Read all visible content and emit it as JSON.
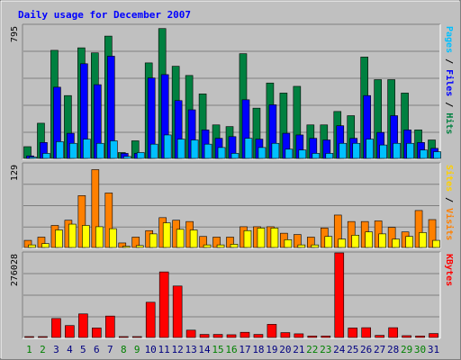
{
  "chart_data": {
    "type": "bar",
    "title": "Daily usage for December 2007",
    "categories": [
      "1",
      "2",
      "3",
      "4",
      "5",
      "6",
      "7",
      "8",
      "9",
      "10",
      "11",
      "12",
      "13",
      "14",
      "15",
      "16",
      "17",
      "18",
      "19",
      "20",
      "21",
      "22",
      "23",
      "24",
      "25",
      "26",
      "27",
      "28",
      "29",
      "30",
      "31"
    ],
    "weekend_categories": [
      "1",
      "2",
      "8",
      "9",
      "15",
      "16",
      "22",
      "23",
      "29",
      "30"
    ],
    "panels": [
      {
        "id": "requests",
        "scale_label": "795",
        "ymax": 795,
        "right_label_parts": [
          "Pages",
          " / ",
          "Files",
          " / ",
          "Hits"
        ],
        "series": [
          {
            "name": "Hits",
            "color": "#008040",
            "values": [
              70,
              210,
              645,
              375,
              660,
              630,
              730,
              35,
              105,
              570,
              775,
              550,
              495,
              385,
              200,
              190,
              625,
              300,
              450,
              390,
              430,
              200,
              200,
              280,
              255,
              605,
              470,
              470,
              390,
              170,
              110
            ]
          },
          {
            "name": "Files",
            "color": "#0000ff",
            "values": [
              15,
              95,
              425,
              150,
              565,
              440,
              610,
              30,
              30,
              480,
              500,
              345,
              290,
              170,
              120,
              130,
              350,
              115,
              320,
              150,
              140,
              120,
              110,
              195,
              120,
              375,
              155,
              255,
              170,
              95,
              60
            ]
          },
          {
            "name": "Pages",
            "color": "#00c0ff",
            "values": [
              8,
              30,
              100,
              90,
              115,
              90,
              105,
              12,
              35,
              85,
              140,
              115,
              110,
              85,
              65,
              30,
              120,
              65,
              90,
              55,
              50,
              30,
              30,
              90,
              90,
              115,
              80,
              90,
              90,
              50,
              40
            ]
          }
        ]
      },
      {
        "id": "visitors",
        "scale_label": "129",
        "ymax": 129,
        "right_label_parts": [
          "Sites",
          " / ",
          "Visits"
        ],
        "series": [
          {
            "name": "Visits",
            "color": "#ff8000",
            "values": [
              11,
              16,
              34,
              42,
              80,
              120,
              84,
              7,
              16,
              26,
              46,
              42,
              40,
              17,
              16,
              16,
              32,
              32,
              32,
              22,
              20,
              16,
              30,
              50,
              40,
              40,
              41,
              31,
              24,
              57,
              43
            ]
          },
          {
            "name": "Sites",
            "color": "#ffff00",
            "values": [
              4,
              6,
              27,
              36,
              34,
              32,
              29,
              2,
              3,
              21,
              38,
              28,
              27,
              4,
              4,
              5,
              26,
              30,
              30,
              12,
              4,
              4,
              17,
              13,
              19,
              24,
              21,
              13,
              17,
              23,
              11
            ]
          }
        ]
      },
      {
        "id": "kbytes",
        "scale_label": "276028",
        "ymax": 276028,
        "right_label_parts": [
          "KBytes"
        ],
        "series": [
          {
            "name": "KBytes",
            "color": "#ff0000",
            "values": [
              3000,
              3000,
              62000,
              39000,
              77000,
              31000,
              70000,
              3000,
              3000,
              115000,
              214000,
              168000,
              24000,
              10000,
              10000,
              9000,
              17000,
              10000,
              43000,
              16000,
              12000,
              5000,
              5000,
              276028,
              31000,
              32000,
              7000,
              32000,
              6000,
              5000,
              13000
            ]
          }
        ]
      }
    ],
    "colors": {
      "background": "#c0c0c0",
      "title": "#0000ff",
      "weekday_label": "#000080",
      "weekend_label": "#008000",
      "grid": "#808080"
    }
  }
}
